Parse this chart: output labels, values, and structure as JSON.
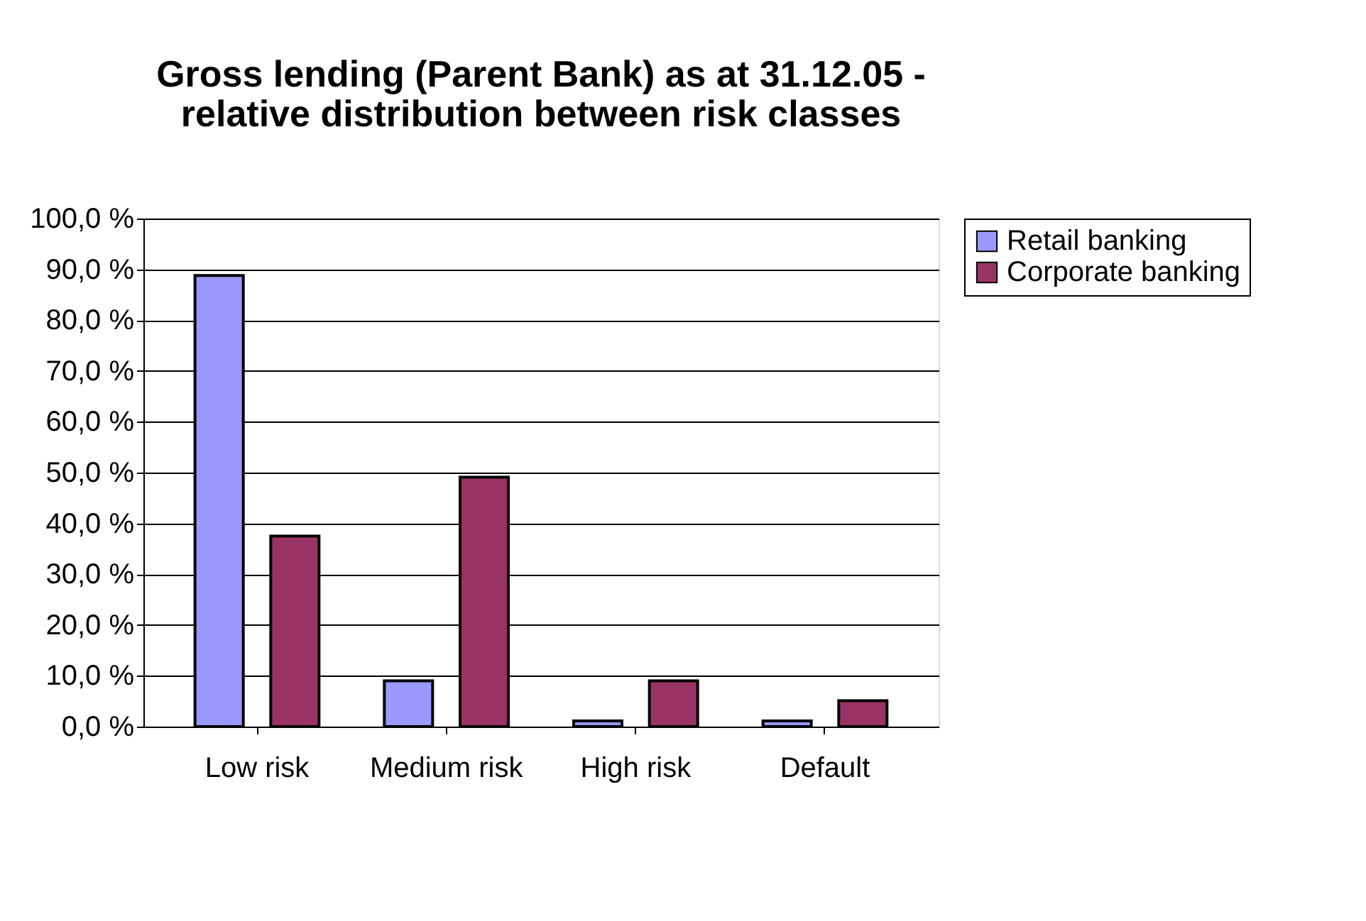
{
  "chart_data": {
    "type": "bar",
    "title": [
      "Gross lending (Parent Bank) as at 31.12.05 -",
      "relative distribution between risk classes"
    ],
    "categories": [
      "Low risk",
      "Medium risk",
      "High risk",
      "Default"
    ],
    "series": [
      {
        "name": "Retail banking",
        "color": "#9999ff",
        "values": [
          88.8,
          9.0,
          1.1,
          1.1
        ]
      },
      {
        "name": "Corporate banking",
        "color": "#993366",
        "values": [
          37.5,
          49.1,
          9.0,
          5.1
        ]
      }
    ],
    "ylim": [
      0,
      100
    ],
    "yticks": [
      {
        "value": 0,
        "label": "0,0 %"
      },
      {
        "value": 10,
        "label": "10,0 %"
      },
      {
        "value": 20,
        "label": "20,0 %"
      },
      {
        "value": 30,
        "label": "30,0 %"
      },
      {
        "value": 40,
        "label": "40,0 %"
      },
      {
        "value": 50,
        "label": "50,0 %"
      },
      {
        "value": 60,
        "label": "60,0 %"
      },
      {
        "value": 70,
        "label": "70,0 %"
      },
      {
        "value": 80,
        "label": "80,0 %"
      },
      {
        "value": 90,
        "label": "90,0 %"
      },
      {
        "value": 100,
        "label": "100,0 %"
      }
    ],
    "grid": "y",
    "legend": "right"
  }
}
